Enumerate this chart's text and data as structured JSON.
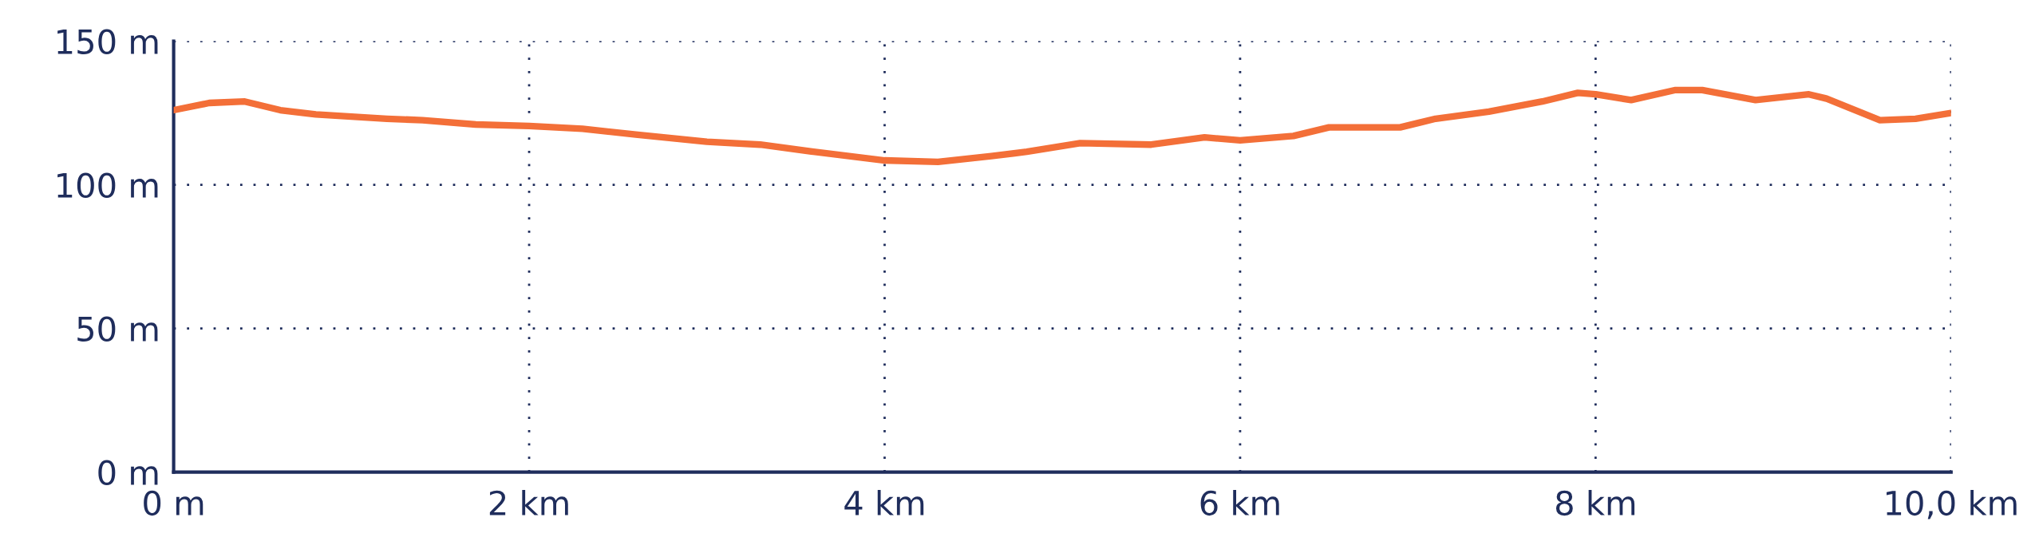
{
  "chart_data": {
    "type": "line",
    "x": [
      0,
      0.2,
      0.4,
      0.6,
      0.8,
      1.2,
      1.4,
      1.7,
      2.0,
      2.3,
      2.6,
      3.0,
      3.3,
      3.6,
      4.0,
      4.3,
      4.6,
      4.8,
      5.1,
      5.5,
      5.8,
      6.0,
      6.3,
      6.5,
      6.9,
      7.1,
      7.4,
      7.7,
      7.9,
      8.0,
      8.2,
      8.45,
      8.6,
      8.9,
      9.2,
      9.3,
      9.6,
      9.8,
      10.0
    ],
    "series": [
      {
        "color": "#f36f38",
        "values": [
          126,
          128.5,
          129,
          126,
          124.5,
          123,
          122.5,
          121,
          120.5,
          119.5,
          117.5,
          115,
          114,
          111.5,
          108.5,
          108,
          110,
          111.5,
          114.5,
          114,
          116.5,
          115.5,
          117,
          120,
          120,
          123,
          125.5,
          129,
          132,
          131.5,
          129.5,
          133,
          133,
          129.5,
          131.5,
          130,
          122.5,
          123,
          125
        ]
      }
    ],
    "xlim": [
      0,
      10
    ],
    "ylim": [
      0,
      150
    ],
    "xticks": [
      {
        "value": 0,
        "label": "0 m"
      },
      {
        "value": 2,
        "label": "2 km"
      },
      {
        "value": 4,
        "label": "4 km"
      },
      {
        "value": 6,
        "label": "6 km"
      },
      {
        "value": 8,
        "label": "8 km"
      },
      {
        "value": 10,
        "label": "10,0 km"
      }
    ],
    "yticks": [
      {
        "value": 0,
        "label": "0 m"
      },
      {
        "value": 50,
        "label": "50 m"
      },
      {
        "value": 100,
        "label": "100 m"
      },
      {
        "value": 150,
        "label": "150 m"
      }
    ],
    "grid": true,
    "line_style": "solid",
    "marker": "none"
  }
}
